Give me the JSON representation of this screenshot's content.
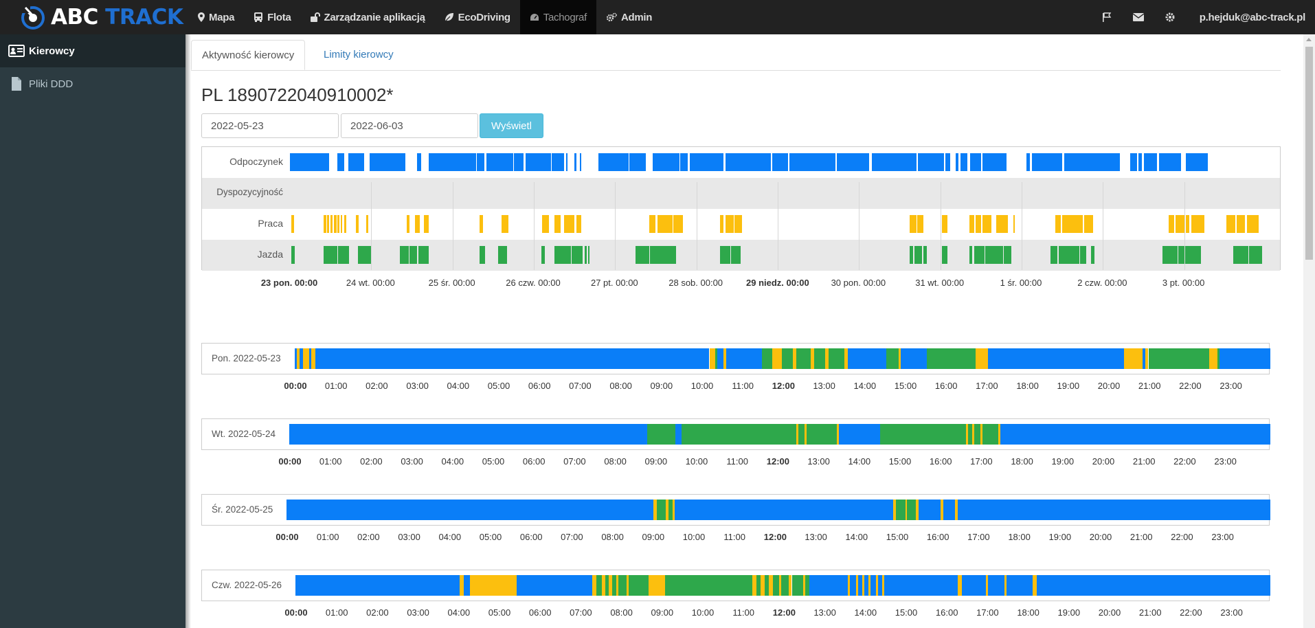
{
  "brand": {
    "abc": "ABC",
    "track": "TRACK"
  },
  "nav": [
    {
      "label": "Mapa",
      "icon": "map-marker-icon",
      "active": false
    },
    {
      "label": "Flota",
      "icon": "bus-icon",
      "active": false
    },
    {
      "label": "Zarządzanie aplikacją",
      "icon": "unlock-icon",
      "active": false
    },
    {
      "label": "EcoDriving",
      "icon": "leaf-icon",
      "active": false
    },
    {
      "label": "Tachograf",
      "icon": "dashboard-icon",
      "active": true
    },
    {
      "label": "Admin",
      "icon": "cogs-icon",
      "active": false
    }
  ],
  "user": {
    "email": "p.hejduk@abc-track.pl"
  },
  "sidebar": {
    "items": [
      {
        "label": "Kierowcy",
        "icon": "id-card-icon",
        "active": true
      },
      {
        "label": "Pliki DDD",
        "icon": "file-icon",
        "active": false
      }
    ]
  },
  "tabs": [
    {
      "label": "Aktywność kierowcy",
      "active": true
    },
    {
      "label": "Limity kierowcy",
      "active": false
    }
  ],
  "card_number": "PL 1890722040910002*",
  "filters": {
    "date_from": "2022-05-23",
    "date_to": "2022-06-03",
    "submit_label": "Wyświetl"
  },
  "colors": {
    "rest": "#0a7ef8",
    "available": "#e8e8e8",
    "work": "#fcbf0e",
    "driving": "#2ea84b"
  },
  "overview": {
    "rows": [
      {
        "label": "Odpoczynek",
        "type": "rest"
      },
      {
        "label": "Dyspozycyjność",
        "type": "available"
      },
      {
        "label": "Praca",
        "type": "work"
      },
      {
        "label": "Jazda",
        "type": "driving"
      }
    ],
    "day_ticks": [
      {
        "label": "23 pon. 00:00",
        "bold": true
      },
      {
        "label": "24 wt. 00:00",
        "bold": false
      },
      {
        "label": "25 śr. 00:00",
        "bold": false
      },
      {
        "label": "26 czw. 00:00",
        "bold": false
      },
      {
        "label": "27 pt. 00:00",
        "bold": false
      },
      {
        "label": "28 sob. 00:00",
        "bold": false
      },
      {
        "label": "29 niedz. 00:00",
        "bold": true
      },
      {
        "label": "30 pon. 00:00",
        "bold": false
      },
      {
        "label": "31 wt. 00:00",
        "bold": false
      },
      {
        "label": "1 śr. 00:00",
        "bold": false
      },
      {
        "label": "2 czw. 00:00",
        "bold": false
      },
      {
        "label": "3 pt. 00:00",
        "bold": false
      }
    ],
    "segments": {
      "rest": [
        [
          0,
          11.5
        ],
        [
          14,
          16
        ],
        [
          17.2,
          22
        ],
        [
          23.5,
          34
        ],
        [
          37.5,
          38.8
        ],
        [
          41,
          55
        ],
        [
          55.2,
          57.5
        ],
        [
          58,
          66
        ],
        [
          66.2,
          69
        ],
        [
          69.5,
          77
        ],
        [
          77.2,
          81
        ],
        [
          81.5,
          82
        ],
        [
          84,
          84.5
        ],
        [
          85.5,
          86
        ],
        [
          91,
          100
        ],
        [
          100.2,
          105
        ],
        [
          107,
          115
        ],
        [
          115.2,
          117.5
        ],
        [
          118,
          128
        ],
        [
          128.5,
          142
        ],
        [
          142.4,
          147
        ],
        [
          147.5,
          161
        ],
        [
          161.5,
          171
        ],
        [
          171.7,
          185
        ],
        [
          185.3,
          193
        ],
        [
          193.5,
          195
        ],
        [
          196.5,
          197.3
        ],
        [
          198,
          200
        ],
        [
          200.8,
          204
        ],
        [
          204.5,
          211.5
        ],
        [
          217.5,
          218.5
        ],
        [
          219,
          228
        ],
        [
          228.5,
          245
        ],
        [
          248,
          250
        ],
        [
          250.5,
          251.5
        ],
        [
          252,
          256
        ],
        [
          256.5,
          263
        ],
        [
          264.5,
          271
        ]
      ],
      "work": [
        [
          0.5,
          1.2
        ],
        [
          10,
          10.7
        ],
        [
          11,
          11.6
        ],
        [
          12,
          12.6
        ],
        [
          13,
          13.7
        ],
        [
          14,
          14.6
        ],
        [
          15,
          15.5
        ],
        [
          16,
          16.6
        ],
        [
          19.5,
          20.2
        ],
        [
          22.5,
          23.2
        ],
        [
          34.5,
          35.2
        ],
        [
          37,
          38.3
        ],
        [
          39.5,
          41
        ],
        [
          56,
          57
        ],
        [
          62.5,
          64.5
        ],
        [
          74.5,
          76.5
        ],
        [
          78,
          80
        ],
        [
          81,
          84
        ],
        [
          84.5,
          86
        ],
        [
          106,
          108
        ],
        [
          108.5,
          113
        ],
        [
          113.2,
          116
        ],
        [
          127,
          128
        ],
        [
          128.5,
          131
        ],
        [
          131.2,
          133.5
        ],
        [
          183,
          185
        ],
        [
          185.2,
          187
        ],
        [
          192.5,
          194
        ],
        [
          200.5,
          202
        ],
        [
          202.5,
          204
        ],
        [
          204.5,
          207
        ],
        [
          208.5,
          212
        ],
        [
          213.5,
          214
        ],
        [
          226,
          227.5
        ],
        [
          228,
          234
        ],
        [
          234.5,
          237
        ],
        [
          259.5,
          261
        ],
        [
          261.5,
          264
        ],
        [
          264.5,
          265.5
        ],
        [
          266,
          270
        ],
        [
          276.5,
          279
        ],
        [
          279.5,
          282
        ],
        [
          282.5,
          286
        ],
        [
          296,
          298
        ],
        [
          298.5,
          303
        ],
        [
          303.5,
          306
        ],
        [
          306.3,
          308
        ],
        [
          309,
          310
        ]
      ],
      "driving": [
        [
          0.5,
          1.5
        ],
        [
          10,
          14
        ],
        [
          14.2,
          17.5
        ],
        [
          20,
          24
        ],
        [
          32.5,
          35
        ],
        [
          35.2,
          37.5
        ],
        [
          38,
          41
        ],
        [
          56,
          57.5
        ],
        [
          61.5,
          64
        ],
        [
          74.3,
          75.2
        ],
        [
          78,
          83
        ],
        [
          83.2,
          86.5
        ],
        [
          87,
          87.7
        ],
        [
          88,
          88.5
        ],
        [
          102,
          106
        ],
        [
          106.2,
          114
        ],
        [
          127,
          130
        ],
        [
          130.2,
          133
        ],
        [
          183,
          184
        ],
        [
          184.3,
          186.5
        ],
        [
          187,
          188
        ],
        [
          192.5,
          194
        ],
        [
          200.5,
          201.5
        ],
        [
          202,
          205
        ],
        [
          205.3,
          210.5
        ],
        [
          210.7,
          213
        ],
        [
          224.5,
          226.5
        ],
        [
          227,
          233
        ],
        [
          233.3,
          235
        ],
        [
          236.5,
          237.5
        ],
        [
          257.5,
          262
        ],
        [
          262.2,
          269
        ],
        [
          278.5,
          283
        ],
        [
          283.2,
          287
        ],
        [
          288,
          289.5
        ],
        [
          300.5,
          307
        ],
        [
          307.2,
          310
        ]
      ]
    }
  },
  "days": [
    {
      "label": "Pon. 2022-05-23",
      "segments": [
        [
          "rest",
          0,
          0.05
        ],
        [
          "work",
          0.05,
          0.12
        ],
        [
          "rest",
          0.12,
          0.2
        ],
        [
          "work",
          0.2,
          0.35
        ],
        [
          "rest",
          0.35,
          0.4
        ],
        [
          "work",
          0.4,
          0.5
        ],
        [
          "rest",
          0.5,
          10.2
        ],
        [
          "work",
          10.2,
          10.35
        ],
        [
          "driving",
          10.35,
          10.4
        ],
        [
          "rest",
          10.4,
          10.55
        ],
        [
          "work",
          10.55,
          10.62
        ],
        [
          "rest",
          10.62,
          11.5
        ],
        [
          "driving",
          11.5,
          11.75
        ],
        [
          "work",
          11.75,
          11.98
        ],
        [
          "driving",
          11.98,
          12.25
        ],
        [
          "work",
          12.25,
          12.34
        ],
        [
          "driving",
          12.34,
          12.7
        ],
        [
          "work",
          12.7,
          12.78
        ],
        [
          "driving",
          12.78,
          13.05
        ],
        [
          "work",
          13.05,
          13.13
        ],
        [
          "driving",
          13.13,
          13.52
        ],
        [
          "work",
          13.52,
          13.6
        ],
        [
          "rest",
          13.6,
          14.55
        ],
        [
          "driving",
          14.55,
          14.85
        ],
        [
          "work",
          14.85,
          14.9
        ],
        [
          "rest",
          14.9,
          15.55
        ],
        [
          "driving",
          15.55,
          16.75
        ],
        [
          "work",
          16.75,
          17.05
        ],
        [
          "rest",
          17.05,
          20.4
        ],
        [
          "work",
          20.4,
          20.85
        ],
        [
          "rest",
          20.85,
          20.92
        ],
        [
          "work",
          20.92,
          21.0
        ],
        [
          "driving",
          21.0,
          22.5
        ],
        [
          "work",
          22.5,
          22.7
        ],
        [
          "driving",
          22.7,
          22.75
        ],
        [
          "rest",
          22.75,
          24
        ]
      ]
    },
    {
      "label": "Wt. 2022-05-24",
      "segments": [
        [
          "rest",
          0,
          8.75
        ],
        [
          "driving",
          8.75,
          9.45
        ],
        [
          "rest",
          9.45,
          9.6
        ],
        [
          "driving",
          9.6,
          12.4
        ],
        [
          "work",
          12.4,
          12.45
        ],
        [
          "driving",
          12.45,
          12.6
        ],
        [
          "work",
          12.6,
          12.65
        ],
        [
          "driving",
          12.65,
          13.4
        ],
        [
          "work",
          13.4,
          13.45
        ],
        [
          "rest",
          13.45,
          14.45
        ],
        [
          "driving",
          14.45,
          16.55
        ],
        [
          "work",
          16.55,
          16.6
        ],
        [
          "driving",
          16.6,
          16.7
        ],
        [
          "work",
          16.7,
          16.75
        ],
        [
          "driving",
          16.75,
          16.9
        ],
        [
          "work",
          16.9,
          16.95
        ],
        [
          "driving",
          16.95,
          17.35
        ],
        [
          "work",
          17.35,
          17.4
        ],
        [
          "rest",
          17.4,
          24
        ]
      ]
    },
    {
      "label": "Śr. 2022-05-25",
      "segments": [
        [
          "rest",
          0,
          8.95
        ],
        [
          "work",
          8.95,
          9.03
        ],
        [
          "driving",
          9.03,
          9.25
        ],
        [
          "work",
          9.25,
          9.32
        ],
        [
          "driving",
          9.32,
          9.42
        ],
        [
          "work",
          9.42,
          9.47
        ],
        [
          "rest",
          9.47,
          14.8
        ],
        [
          "work",
          14.8,
          14.87
        ],
        [
          "driving",
          14.87,
          15.1
        ],
        [
          "work",
          15.1,
          15.14
        ],
        [
          "driving",
          15.14,
          15.35
        ],
        [
          "work",
          15.35,
          15.42
        ],
        [
          "rest",
          15.42,
          15.95
        ],
        [
          "work",
          15.95,
          16.03
        ],
        [
          "rest",
          16.03,
          16.3
        ],
        [
          "work",
          16.3,
          16.37
        ],
        [
          "rest",
          16.37,
          24
        ]
      ]
    },
    {
      "label": "Czw. 2022-05-26",
      "segments": [
        [
          "rest",
          0,
          4.05
        ],
        [
          "work",
          4.05,
          4.15
        ],
        [
          "rest",
          4.15,
          4.3
        ],
        [
          "work",
          4.3,
          5.45
        ],
        [
          "rest",
          5.45,
          7.3
        ],
        [
          "work",
          7.3,
          7.4
        ],
        [
          "driving",
          7.4,
          7.55
        ],
        [
          "work",
          7.55,
          7.62
        ],
        [
          "driving",
          7.62,
          7.72
        ],
        [
          "work",
          7.72,
          7.8
        ],
        [
          "driving",
          7.8,
          7.9
        ],
        [
          "work",
          7.9,
          7.95
        ],
        [
          "driving",
          7.95,
          8.15
        ],
        [
          "work",
          8.15,
          8.2
        ],
        [
          "driving",
          8.2,
          8.7
        ],
        [
          "work",
          8.7,
          9.1
        ],
        [
          "driving",
          9.1,
          11.25
        ],
        [
          "work",
          11.25,
          11.35
        ],
        [
          "driving",
          11.35,
          11.45
        ],
        [
          "work",
          11.45,
          11.55
        ],
        [
          "driving",
          11.55,
          11.65
        ],
        [
          "work",
          11.65,
          11.75
        ],
        [
          "driving",
          11.75,
          11.9
        ],
        [
          "work",
          11.9,
          11.95
        ],
        [
          "driving",
          11.95,
          12.15
        ],
        [
          "work",
          12.15,
          12.22
        ],
        [
          "driving",
          12.22,
          12.5
        ],
        [
          "work",
          12.5,
          12.55
        ],
        [
          "driving",
          12.55,
          12.65
        ],
        [
          "rest",
          12.65,
          13.6
        ],
        [
          "work",
          13.6,
          13.65
        ],
        [
          "rest",
          13.65,
          13.8
        ],
        [
          "work",
          13.8,
          13.85
        ],
        [
          "rest",
          13.85,
          13.95
        ],
        [
          "work",
          13.95,
          14.0
        ],
        [
          "rest",
          14.0,
          14.1
        ],
        [
          "work",
          14.1,
          14.15
        ],
        [
          "rest",
          14.15,
          14.3
        ],
        [
          "work",
          14.3,
          14.35
        ],
        [
          "rest",
          14.35,
          14.45
        ],
        [
          "work",
          14.45,
          14.5
        ],
        [
          "rest",
          14.5,
          16.3
        ],
        [
          "work",
          16.3,
          16.4
        ],
        [
          "rest",
          16.4,
          17.0
        ],
        [
          "work",
          17.0,
          17.05
        ],
        [
          "rest",
          17.05,
          17.45
        ],
        [
          "work",
          17.45,
          17.5
        ],
        [
          "rest",
          17.5,
          18.15
        ],
        [
          "work",
          18.15,
          18.25
        ],
        [
          "rest",
          18.25,
          24
        ]
      ]
    }
  ],
  "hour_labels": [
    "00:00",
    "01:00",
    "02:00",
    "03:00",
    "04:00",
    "05:00",
    "06:00",
    "07:00",
    "08:00",
    "09:00",
    "10:00",
    "11:00",
    "12:00",
    "13:00",
    "14:00",
    "15:00",
    "16:00",
    "17:00",
    "18:00",
    "19:00",
    "20:00",
    "21:00",
    "22:00",
    "23:00"
  ]
}
